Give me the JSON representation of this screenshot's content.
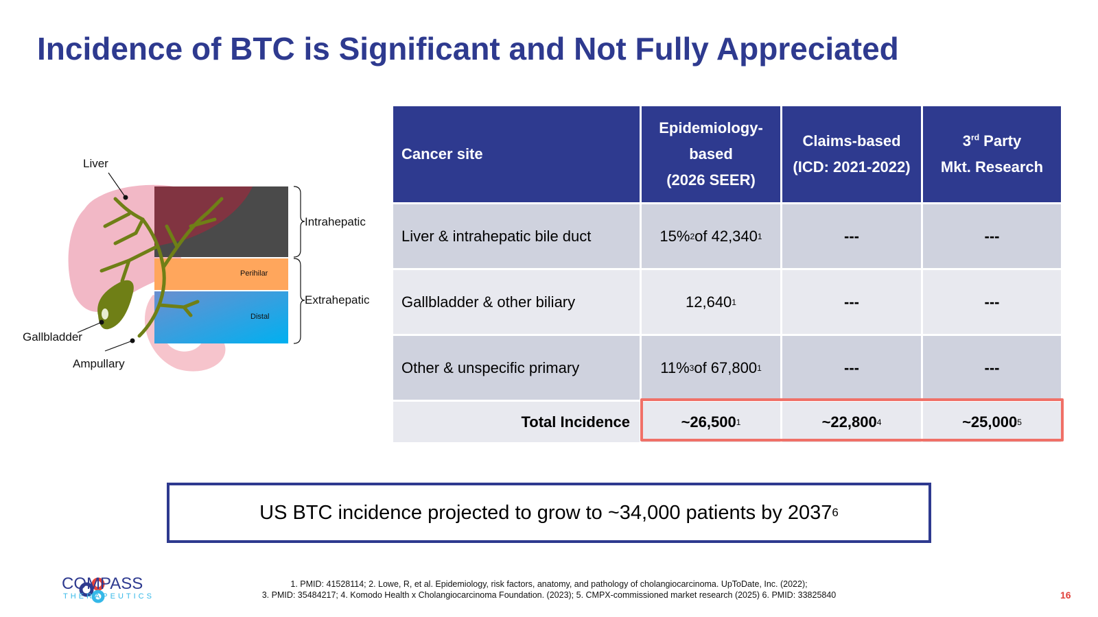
{
  "title": "Incidence of BTC is Significant and Not Fully Appreciated",
  "diagram": {
    "labels": {
      "liver": "Liver",
      "gallbladder": "Gallbladder",
      "ampullary": "Ampullary",
      "intrahepatic": "Intrahepatic",
      "extrahepatic": "Extrahepatic",
      "perihilar": "Perihilar",
      "distal": "Distal"
    },
    "colors": {
      "liver": "#f2b8c6",
      "bile_duct": "#6f7f16",
      "intrahepatic_box": "#4a4a4a",
      "perihilar_box": "#ffa65c",
      "distal_box_top": "#4a90d9",
      "distal_box_bottom": "#00b0f0"
    }
  },
  "table": {
    "headers": {
      "cancer_site": "Cancer site",
      "epi_line1": "Epidemiology-",
      "epi_line2": "based",
      "epi_line3": "(2026 SEER)",
      "claims_line1": "Claims-based",
      "claims_line2": "(ICD: 2021-2022)",
      "third_pre": "3",
      "third_sup": "rd",
      "third_post": " Party",
      "third_line2": "Mkt. Research"
    },
    "rows": [
      {
        "site": "Liver & intrahepatic bile duct",
        "epi_a": "15%",
        "epi_a_sup": "2",
        "epi_b": " of 42,340",
        "epi_b_sup": "1",
        "claims": "---",
        "research": "---"
      },
      {
        "site": "Gallbladder & other biliary",
        "epi_a": "12,640",
        "epi_a_sup": "1",
        "claims": "---",
        "research": "---"
      },
      {
        "site": "Other & unspecific primary",
        "epi_a": "11%",
        "epi_a_sup": "3",
        "epi_b": " of 67,800",
        "epi_b_sup": "1",
        "claims": "---",
        "research": "---"
      }
    ],
    "total": {
      "label": "Total Incidence",
      "epi": "~26,500",
      "epi_sup": "1",
      "claims": "~22,800",
      "claims_sup": "4",
      "research": "~25,000",
      "research_sup": "5"
    },
    "colors": {
      "header": "#2e3a8f",
      "row_dark": "#cfd2de",
      "row_light": "#e8e9ef",
      "highlight": "#f07067"
    }
  },
  "callout": {
    "text": "US BTC incidence projected to grow to ~34,000 patients by 2037",
    "sup": "6"
  },
  "footer": {
    "logo_main": "COMPASS",
    "logo_sub": "THERAPEUTICS",
    "refs_line1": "1. PMID: 41528114; 2. Lowe, R, et al. Epidemiology, risk factors, anatomy, and pathology of cholangiocarcinoma. UpToDate, Inc. (2022);",
    "refs_line2": "3. PMID: 35484217; 4. Komodo Health x Cholangiocarcinoma Foundation. (2023); 5. CMPX-commissioned market research (2025) 6. PMID: 33825840",
    "page_number": "16"
  }
}
